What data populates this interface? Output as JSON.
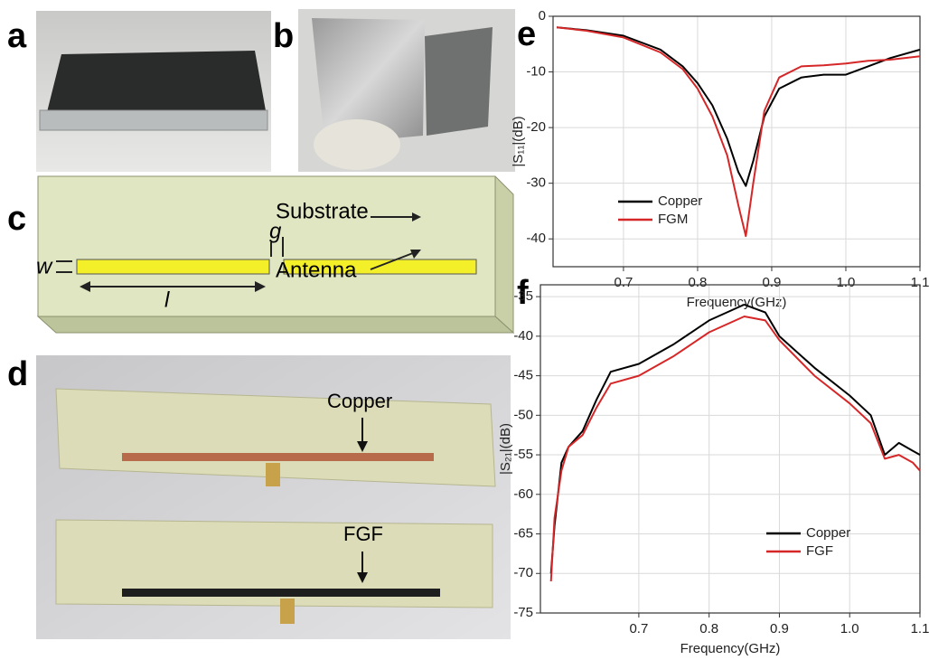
{
  "panel_labels": [
    "a",
    "b",
    "c",
    "d",
    "e",
    "f"
  ],
  "diagram": {
    "substrate": "Substrate",
    "gap": "g",
    "width": "w",
    "length": "l",
    "antenna": "Antenna"
  },
  "photo_d": {
    "top": "Copper",
    "bottom": "FGF"
  },
  "chart_data": [
    {
      "type": "line",
      "xlabel": "Frequency(GHz)",
      "ylabel": "|S₁₁|(dB)",
      "x": [
        0.61,
        0.65,
        0.7,
        0.75,
        0.78,
        0.8,
        0.82,
        0.84,
        0.855,
        0.865,
        0.875,
        0.89,
        0.91,
        0.94,
        0.97,
        1.0,
        1.03,
        1.06,
        1.1
      ],
      "series": [
        {
          "name": "Copper",
          "color": "#000000",
          "values": [
            -2,
            -2.5,
            -3.5,
            -6,
            -9,
            -12,
            -16,
            -22,
            -28,
            -30.5,
            -26,
            -18,
            -13,
            -11,
            -10.5,
            -10.5,
            -9,
            -7.5,
            -6
          ]
        },
        {
          "name": "FGM",
          "color": "#d62728",
          "values": [
            -2,
            -2.6,
            -3.8,
            -6.5,
            -9.5,
            -13,
            -18,
            -25,
            -34,
            -39.5,
            -30,
            -17,
            -11,
            -9,
            -8.8,
            -8.5,
            -8,
            -7.8,
            -7.2
          ]
        }
      ],
      "xlim": [
        0.605,
        1.1
      ],
      "xticks": [
        0.7,
        0.8,
        0.9,
        {
          "value": 1,
          "label": "1.0"
        },
        1.1
      ],
      "ylim": [
        -45,
        0
      ],
      "yticks": [
        0,
        -10,
        -20,
        -30,
        -40
      ],
      "grid": true,
      "legend": "lower left"
    },
    {
      "type": "line",
      "xlabel": "Frequency(GHz)",
      "ylabel": "|S₂₁|(dB)",
      "x": [
        0.575,
        0.58,
        0.59,
        0.6,
        0.62,
        0.64,
        0.66,
        0.7,
        0.75,
        0.8,
        0.85,
        0.88,
        0.9,
        0.95,
        1.0,
        1.03,
        1.05,
        1.07,
        1.09,
        1.1
      ],
      "series": [
        {
          "name": "Copper",
          "color": "#000000",
          "values": [
            -70,
            -64,
            -56,
            -54,
            -52,
            -48,
            -44.5,
            -43.5,
            -41,
            -38,
            -36,
            -37,
            -40,
            -44,
            -47.5,
            -50,
            -55,
            -53.5,
            -54.5,
            -55
          ]
        },
        {
          "name": "FGF",
          "color": "#d62728",
          "values": [
            -71,
            -63,
            -57,
            -54,
            -52.5,
            -49,
            -46,
            -45,
            -42.5,
            -39.5,
            -37.5,
            -38,
            -40.5,
            -45,
            -48.5,
            -51,
            -55.5,
            -55,
            -56,
            -57
          ]
        }
      ],
      "xlim": [
        0.56,
        1.1
      ],
      "xticks": [
        0.7,
        0.8,
        0.9,
        {
          "value": 1,
          "label": "1.0"
        },
        1.1
      ],
      "ylim": [
        -75,
        -33.5
      ],
      "yticks": [
        -35,
        -40,
        -45,
        -50,
        -55,
        -60,
        -65,
        -70,
        -75
      ],
      "grid": true,
      "legend": "lower right"
    }
  ]
}
